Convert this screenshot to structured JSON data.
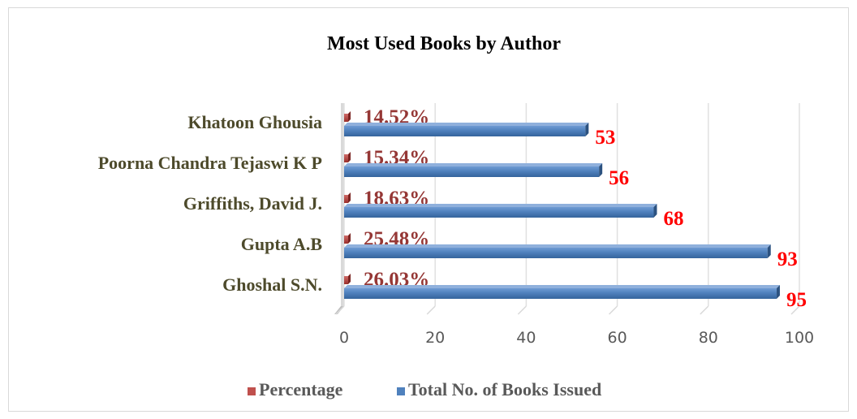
{
  "chart_data": {
    "type": "bar",
    "orientation": "horizontal",
    "title": "Most Used Books by Author",
    "categories": [
      "Khatoon Ghousia",
      "Poorna Chandra Tejaswi K P",
      "Griffiths, David J.",
      "Gupta A.B",
      "Ghoshal S.N."
    ],
    "series": [
      {
        "name": "Percentage",
        "values": [
          14.52,
          15.34,
          18.63,
          25.48,
          26.03
        ],
        "labels": [
          "14.52%",
          "15.34%",
          "18.63%",
          "25.48%",
          "26.03%"
        ],
        "color": "#c0504d"
      },
      {
        "name": "Total No. of Books Issued",
        "values": [
          53,
          56,
          68,
          93,
          95
        ],
        "labels": [
          "53",
          "56",
          "68",
          "93",
          "95"
        ],
        "color": "#4f81bd"
      }
    ],
    "xlim": [
      0,
      100
    ],
    "xticks": [
      "0",
      "20",
      "40",
      "60",
      "80",
      "100"
    ],
    "grid": true,
    "legend_position": "bottom"
  },
  "colors": {
    "percentage_label": "#953735",
    "value_label": "#ff0000",
    "category_label": "#4d4a2b"
  }
}
